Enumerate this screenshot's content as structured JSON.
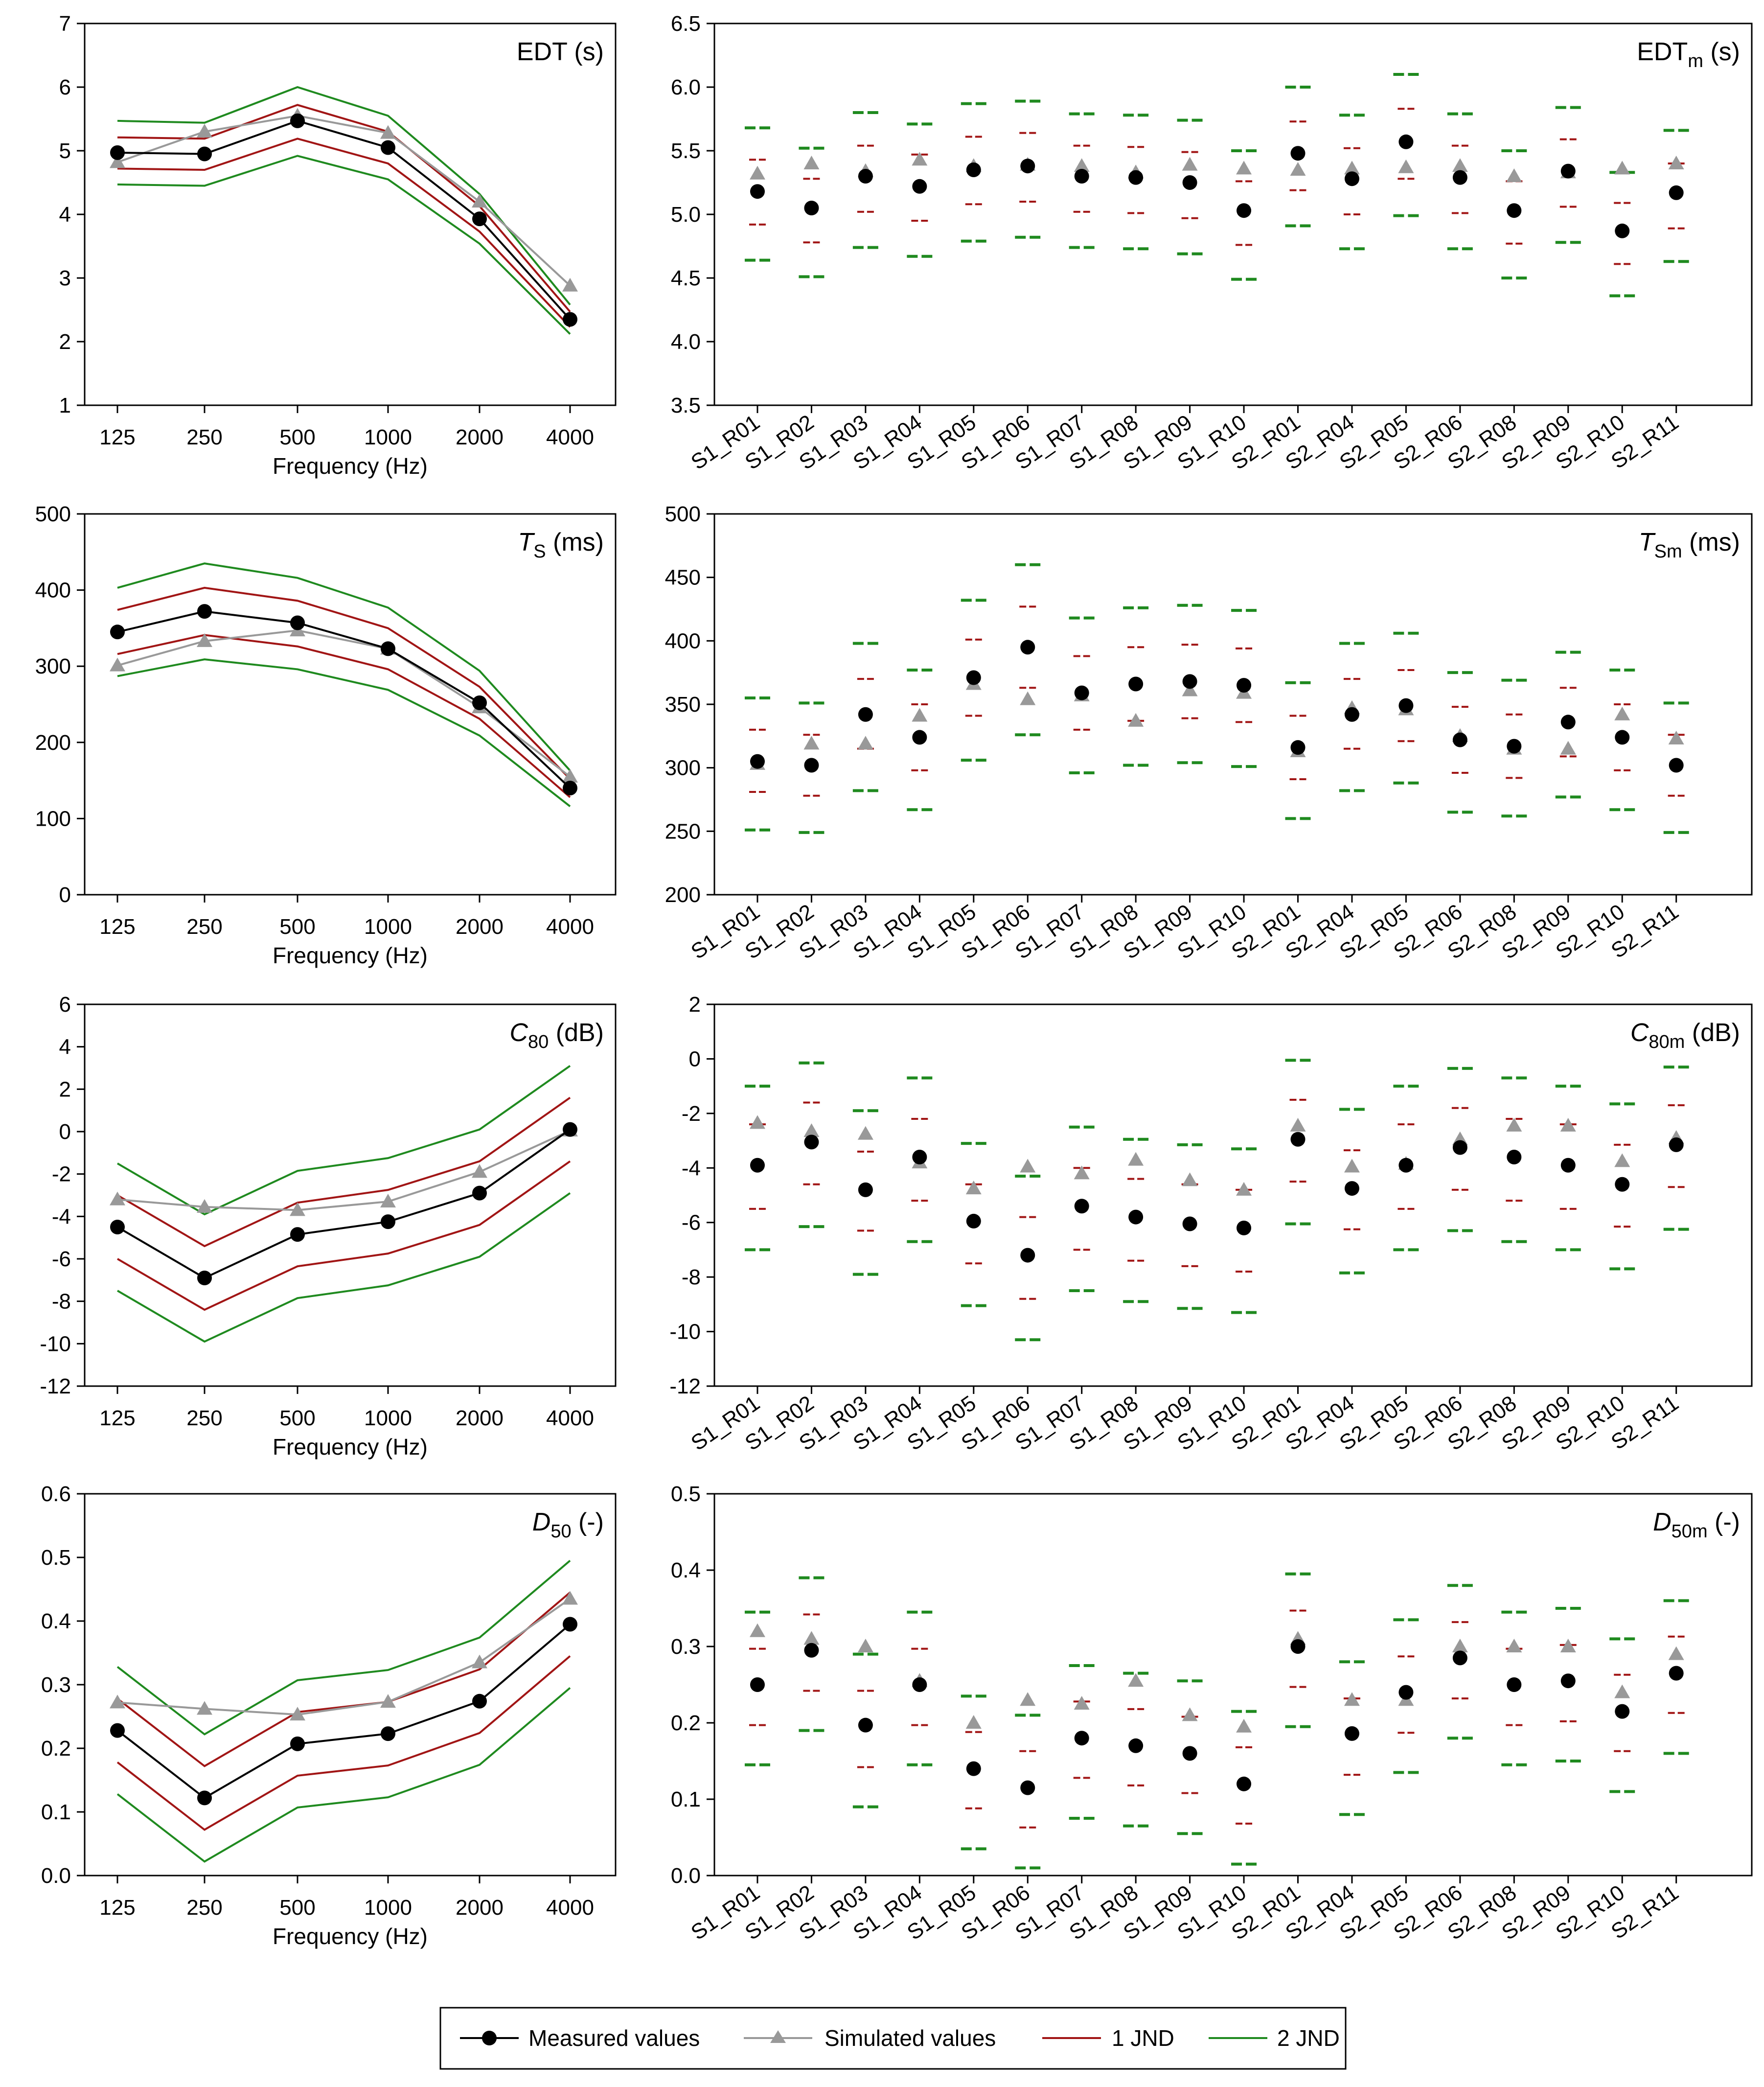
{
  "colors": {
    "measured": "#000000",
    "simulated": "#999999",
    "jnd1": "#a11515",
    "jnd2": "#1f8a1f"
  },
  "legend": {
    "measured": "Measured values",
    "simulated": "Simulated values",
    "jnd1": "1 JND",
    "jnd2": "2 JND"
  },
  "chart_data": [
    {
      "type": "line",
      "panel": "edt-freq",
      "title_main": "EDT (s)",
      "title_italic": "",
      "title_sub": "",
      "title_after": "",
      "xlabel": "Frequency (Hz)",
      "categories": [
        "125",
        "250",
        "500",
        "1000",
        "2000",
        "4000"
      ],
      "ylim": [
        1,
        7
      ],
      "yticks": [
        "1",
        "2",
        "3",
        "4",
        "5",
        "6",
        "7"
      ],
      "series": [
        {
          "name": "Measured values",
          "values": [
            4.97,
            4.95,
            5.47,
            5.05,
            3.93,
            2.35
          ]
        },
        {
          "name": "Simulated values",
          "values": [
            4.82,
            5.3,
            5.55,
            5.28,
            4.2,
            2.88
          ]
        },
        {
          "name": "1 JND upper",
          "values": [
            5.21,
            5.19,
            5.72,
            5.3,
            4.13,
            2.47
          ]
        },
        {
          "name": "1 JND lower",
          "values": [
            4.72,
            4.7,
            5.19,
            4.8,
            3.73,
            2.23
          ]
        },
        {
          "name": "2 JND upper",
          "values": [
            5.47,
            5.44,
            6.0,
            5.55,
            4.32,
            2.58
          ]
        },
        {
          "name": "2 JND lower",
          "values": [
            4.47,
            4.45,
            4.92,
            4.55,
            3.54,
            2.12
          ]
        }
      ]
    },
    {
      "type": "scatter",
      "panel": "edt-pos",
      "title_main": "EDT",
      "title_italic": "",
      "title_sub": "m",
      "title_after": " (s)",
      "categories": [
        "S1_R01",
        "S1_R02",
        "S1_R03",
        "S1_R04",
        "S1_R05",
        "S1_R06",
        "S1_R07",
        "S1_R08",
        "S1_R09",
        "S1_R10",
        "S2_R01",
        "S2_R04",
        "S2_R05",
        "S2_R06",
        "S2_R08",
        "S2_R09",
        "S2_R10",
        "S2_R11"
      ],
      "ylim": [
        3.5,
        6.5
      ],
      "yticks": [
        "3.5",
        "4.0",
        "4.5",
        "5.0",
        "5.5",
        "6.0",
        "6.5"
      ],
      "measured": [
        5.18,
        5.05,
        5.3,
        5.22,
        5.35,
        5.38,
        5.3,
        5.29,
        5.25,
        5.03,
        5.48,
        5.28,
        5.57,
        5.29,
        5.03,
        5.34,
        4.87,
        5.17
      ],
      "simulated": [
        5.32,
        5.4,
        5.34,
        5.43,
        5.38,
        5.39,
        5.38,
        5.33,
        5.39,
        5.36,
        5.35,
        5.36,
        5.37,
        5.38,
        5.3,
        5.33,
        5.36,
        5.4
      ],
      "jnd1_upper": [
        5.43,
        5.28,
        5.54,
        5.47,
        5.61,
        5.64,
        5.54,
        5.53,
        5.49,
        5.26,
        5.73,
        5.52,
        5.83,
        5.54,
        5.26,
        5.59,
        5.09,
        5.4
      ],
      "jnd1_lower": [
        4.92,
        4.78,
        5.02,
        4.95,
        5.08,
        5.1,
        5.02,
        5.01,
        4.97,
        4.76,
        5.19,
        5.0,
        5.28,
        5.01,
        4.77,
        5.06,
        4.61,
        4.89
      ],
      "jnd2_upper": [
        5.68,
        5.52,
        5.8,
        5.71,
        5.87,
        5.89,
        5.79,
        5.78,
        5.74,
        5.5,
        6.0,
        5.78,
        6.1,
        5.79,
        5.5,
        5.84,
        5.33,
        5.66
      ],
      "jnd2_lower": [
        4.64,
        4.51,
        4.74,
        4.67,
        4.79,
        4.82,
        4.74,
        4.73,
        4.69,
        4.49,
        4.91,
        4.73,
        4.99,
        4.73,
        4.5,
        4.78,
        4.36,
        4.63
      ]
    },
    {
      "type": "line",
      "panel": "ts-freq",
      "title_main": "",
      "title_italic": "T",
      "title_sub": "S",
      "title_after": " (ms)",
      "xlabel": "Frequency (Hz)",
      "categories": [
        "125",
        "250",
        "500",
        "1000",
        "2000",
        "4000"
      ],
      "ylim": [
        0,
        500
      ],
      "yticks": [
        "0",
        "100",
        "200",
        "300",
        "400",
        "500"
      ],
      "series": [
        {
          "name": "Measured values",
          "values": [
            345,
            372,
            357,
            323,
            252,
            140
          ]
        },
        {
          "name": "Simulated values",
          "values": [
            301,
            333,
            347,
            323,
            246,
            155
          ]
        },
        {
          "name": "1 JND upper",
          "values": [
            374,
            403,
            386,
            350,
            273,
            152
          ]
        },
        {
          "name": "1 JND lower",
          "values": [
            316,
            341,
            326,
            296,
            231,
            128
          ]
        },
        {
          "name": "2 JND upper",
          "values": [
            403,
            435,
            416,
            377,
            294,
            163
          ]
        },
        {
          "name": "2 JND lower",
          "values": [
            287,
            309,
            296,
            269,
            209,
            116
          ]
        }
      ]
    },
    {
      "type": "scatter",
      "panel": "ts-pos",
      "title_main": "",
      "title_italic": "T",
      "title_sub": "Sm",
      "title_after": " (ms)",
      "categories": [
        "S1_R01",
        "S1_R02",
        "S1_R03",
        "S1_R04",
        "S1_R05",
        "S1_R06",
        "S1_R07",
        "S1_R08",
        "S1_R09",
        "S1_R10",
        "S2_R01",
        "S2_R04",
        "S2_R05",
        "S2_R06",
        "S2_R08",
        "S2_R09",
        "S2_R10",
        "S2_R11"
      ],
      "ylim": [
        200,
        500
      ],
      "yticks": [
        "200",
        "250",
        "300",
        "350",
        "400",
        "450",
        "500"
      ],
      "measured": [
        305,
        302,
        342,
        324,
        371,
        395,
        359,
        366,
        368,
        365,
        316,
        342,
        349,
        322,
        317,
        336,
        324,
        302
      ],
      "simulated": [
        303,
        319,
        319,
        341,
        366,
        354,
        357,
        337,
        361,
        359,
        313,
        347,
        346,
        325,
        315,
        315,
        342,
        323
      ],
      "jnd1_upper": [
        330,
        326,
        370,
        350,
        401,
        427,
        388,
        395,
        397,
        394,
        341,
        370,
        377,
        348,
        342,
        363,
        350,
        326
      ],
      "jnd1_lower": [
        281,
        278,
        315,
        298,
        341,
        363,
        330,
        337,
        339,
        336,
        291,
        315,
        321,
        296,
        292,
        309,
        298,
        278
      ],
      "jnd2_upper": [
        355,
        351,
        398,
        377,
        432,
        460,
        418,
        426,
        428,
        424,
        367,
        398,
        406,
        375,
        369,
        391,
        377,
        351
      ],
      "jnd2_lower": [
        251,
        249,
        282,
        267,
        306,
        326,
        296,
        302,
        304,
        301,
        260,
        282,
        288,
        265,
        262,
        277,
        267,
        249
      ]
    },
    {
      "type": "line",
      "panel": "c80-freq",
      "title_main": "",
      "title_italic": "C",
      "title_sub": "80",
      "title_after": " (dB)",
      "xlabel": "Frequency (Hz)",
      "categories": [
        "125",
        "250",
        "500",
        "1000",
        "2000",
        "4000"
      ],
      "ylim": [
        -12,
        6
      ],
      "yticks": [
        "-12",
        "-10",
        "-8",
        "-6",
        "-4",
        "-2",
        "0",
        "2",
        "4",
        "6"
      ],
      "series": [
        {
          "name": "Measured values",
          "values": [
            -4.5,
            -6.9,
            -4.85,
            -4.25,
            -2.9,
            0.1
          ]
        },
        {
          "name": "Simulated values",
          "values": [
            -3.2,
            -3.55,
            -3.7,
            -3.3,
            -1.9,
            0.05
          ]
        },
        {
          "name": "1 JND upper",
          "values": [
            -3.0,
            -5.4,
            -3.35,
            -2.75,
            -1.4,
            1.6
          ]
        },
        {
          "name": "1 JND lower",
          "values": [
            -6.0,
            -8.4,
            -6.35,
            -5.75,
            -4.4,
            -1.4
          ]
        },
        {
          "name": "2 JND upper",
          "values": [
            -1.5,
            -3.9,
            -1.85,
            -1.25,
            0.1,
            3.1
          ]
        },
        {
          "name": "2 JND lower",
          "values": [
            -7.5,
            -9.9,
            -7.85,
            -7.25,
            -5.9,
            -2.9
          ]
        }
      ]
    },
    {
      "type": "scatter",
      "panel": "c80-pos",
      "title_main": "",
      "title_italic": "C",
      "title_sub": "80m",
      "title_after": " (dB)",
      "categories": [
        "S1_R01",
        "S1_R02",
        "S1_R03",
        "S1_R04",
        "S1_R05",
        "S1_R06",
        "S1_R07",
        "S1_R08",
        "S1_R09",
        "S1_R10",
        "S2_R01",
        "S2_R04",
        "S2_R05",
        "S2_R06",
        "S2_R08",
        "S2_R09",
        "S2_R10",
        "S2_R11"
      ],
      "ylim": [
        -12,
        2
      ],
      "yticks": [
        "-12",
        "-10",
        "-8",
        "-6",
        "-4",
        "-2",
        "0",
        "2"
      ],
      "measured": [
        -3.9,
        -3.05,
        -4.8,
        -3.6,
        -5.95,
        -7.2,
        -5.4,
        -5.8,
        -6.05,
        -6.2,
        -2.95,
        -4.75,
        -3.9,
        -3.25,
        -3.6,
        -3.9,
        -4.6,
        -3.15
      ],
      "simulated": [
        -2.35,
        -2.65,
        -2.75,
        -3.8,
        -4.75,
        -3.95,
        -4.2,
        -3.7,
        -4.45,
        -4.8,
        -2.45,
        -3.95,
        -3.85,
        -2.95,
        -2.45,
        -2.45,
        -3.75,
        -2.9
      ],
      "jnd1_upper": [
        -2.4,
        -1.6,
        -3.4,
        -2.2,
        -4.6,
        -5.8,
        -4.0,
        -4.4,
        -4.6,
        -4.8,
        -1.5,
        -3.35,
        -2.4,
        -1.8,
        -2.2,
        -2.4,
        -3.15,
        -1.7
      ],
      "jnd1_lower": [
        -5.5,
        -4.6,
        -6.3,
        -5.2,
        -7.5,
        -8.8,
        -7.0,
        -7.4,
        -7.6,
        -7.8,
        -4.5,
        -6.25,
        -5.5,
        -4.8,
        -5.2,
        -5.5,
        -6.15,
        -4.7
      ],
      "jnd2_upper": [
        -1.0,
        -0.15,
        -1.9,
        -0.7,
        -3.1,
        -4.3,
        -2.5,
        -2.95,
        -3.15,
        -3.3,
        -0.05,
        -1.85,
        -1.0,
        -0.35,
        -0.7,
        -1.0,
        -1.65,
        -0.3
      ],
      "jnd2_lower": [
        -7.0,
        -6.15,
        -7.9,
        -6.7,
        -9.05,
        -10.3,
        -8.5,
        -8.9,
        -9.15,
        -9.3,
        -6.05,
        -7.85,
        -7.0,
        -6.3,
        -6.7,
        -7.0,
        -7.7,
        -6.25
      ]
    },
    {
      "type": "line",
      "panel": "d50-freq",
      "title_main": "",
      "title_italic": "D",
      "title_sub": "50",
      "title_after": " (-)",
      "xlabel": "Frequency (Hz)",
      "categories": [
        "125",
        "250",
        "500",
        "1000",
        "2000",
        "4000"
      ],
      "ylim": [
        0,
        0.6
      ],
      "yticks": [
        "0.0",
        "0.1",
        "0.2",
        "0.3",
        "0.4",
        "0.5",
        "0.6"
      ],
      "series": [
        {
          "name": "Measured values",
          "values": [
            0.228,
            0.122,
            0.207,
            0.223,
            0.274,
            0.395
          ]
        },
        {
          "name": "Simulated values",
          "values": [
            0.272,
            0.262,
            0.253,
            0.273,
            0.335,
            0.435
          ]
        },
        {
          "name": "1 JND upper",
          "values": [
            0.278,
            0.172,
            0.257,
            0.273,
            0.324,
            0.445
          ]
        },
        {
          "name": "1 JND lower",
          "values": [
            0.178,
            0.072,
            0.157,
            0.173,
            0.224,
            0.345
          ]
        },
        {
          "name": "2 JND upper",
          "values": [
            0.328,
            0.222,
            0.307,
            0.323,
            0.374,
            0.495
          ]
        },
        {
          "name": "2 JND lower",
          "values": [
            0.128,
            0.022,
            0.107,
            0.123,
            0.174,
            0.295
          ]
        }
      ]
    },
    {
      "type": "scatter",
      "panel": "d50-pos",
      "title_main": "",
      "title_italic": "D",
      "title_sub": "50m",
      "title_after": " (-)",
      "categories": [
        "S1_R01",
        "S1_R02",
        "S1_R03",
        "S1_R04",
        "S1_R05",
        "S1_R06",
        "S1_R07",
        "S1_R08",
        "S1_R09",
        "S1_R10",
        "S2_R01",
        "S2_R04",
        "S2_R05",
        "S2_R06",
        "S2_R08",
        "S2_R09",
        "S2_R10",
        "S2_R11"
      ],
      "ylim": [
        0,
        0.5
      ],
      "yticks": [
        "0.0",
        "0.1",
        "0.2",
        "0.3",
        "0.4",
        "0.5"
      ],
      "measured": [
        0.25,
        0.295,
        0.197,
        0.25,
        0.14,
        0.115,
        0.18,
        0.17,
        0.16,
        0.12,
        0.3,
        0.186,
        0.24,
        0.285,
        0.25,
        0.255,
        0.215,
        0.265
      ],
      "simulated": [
        0.32,
        0.31,
        0.3,
        0.255,
        0.2,
        0.23,
        0.225,
        0.255,
        0.21,
        0.195,
        0.31,
        0.23,
        0.23,
        0.3,
        0.3,
        0.3,
        0.24,
        0.29
      ],
      "jnd1_upper": [
        0.297,
        0.342,
        0.242,
        0.297,
        0.188,
        0.163,
        0.228,
        0.218,
        0.208,
        0.168,
        0.347,
        0.232,
        0.287,
        0.332,
        0.297,
        0.302,
        0.263,
        0.313
      ],
      "jnd1_lower": [
        0.197,
        0.242,
        0.142,
        0.197,
        0.088,
        0.063,
        0.128,
        0.118,
        0.108,
        0.068,
        0.247,
        0.132,
        0.187,
        0.232,
        0.197,
        0.202,
        0.163,
        0.213
      ],
      "jnd2_upper": [
        0.345,
        0.39,
        0.29,
        0.345,
        0.235,
        0.21,
        0.275,
        0.265,
        0.255,
        0.215,
        0.395,
        0.28,
        0.335,
        0.38,
        0.345,
        0.35,
        0.31,
        0.36
      ],
      "jnd2_lower": [
        0.145,
        0.19,
        0.09,
        0.145,
        0.035,
        0.01,
        0.075,
        0.065,
        0.055,
        0.015,
        0.195,
        0.08,
        0.135,
        0.18,
        0.145,
        0.15,
        0.11,
        0.16
      ]
    }
  ]
}
